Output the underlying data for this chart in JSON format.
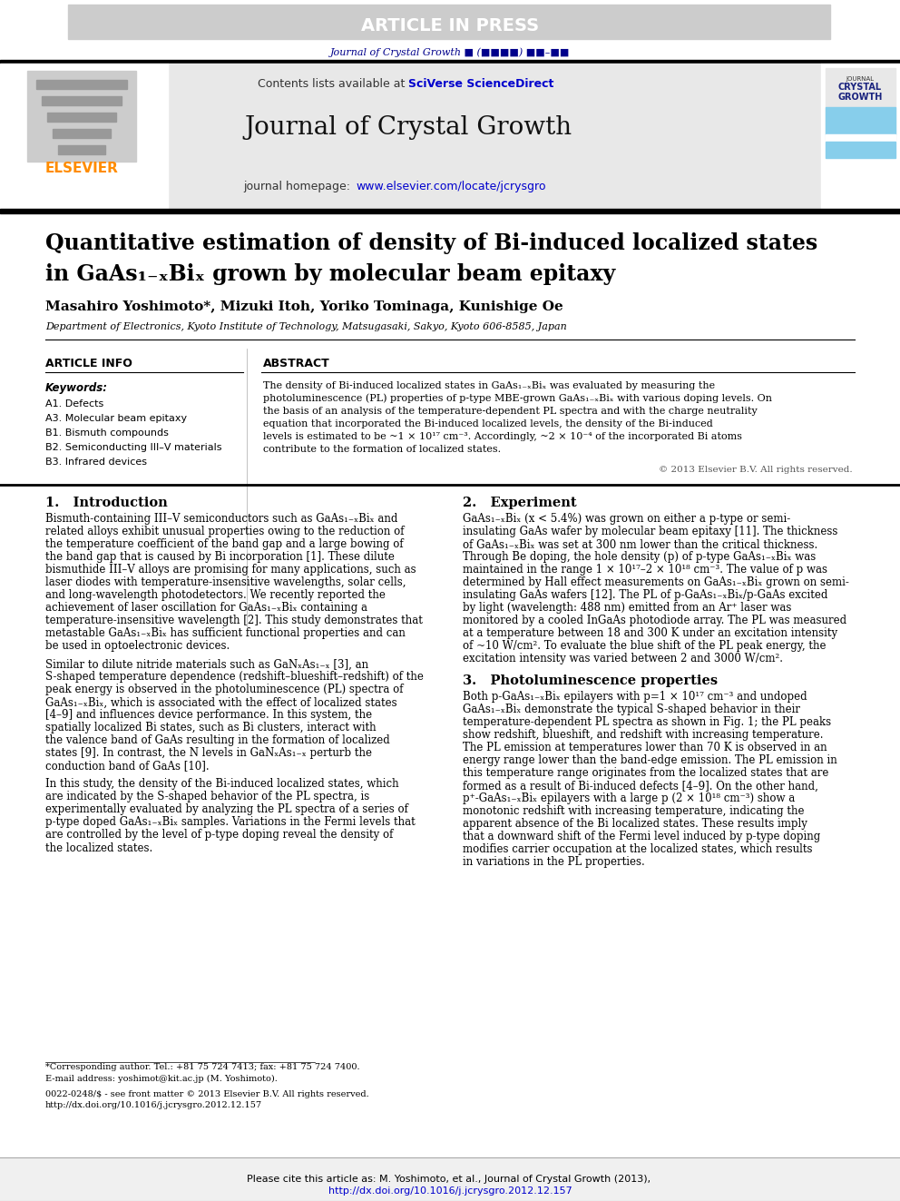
{
  "article_in_press_text": "ARTICLE IN PRESS",
  "article_in_press_bg": "#cccccc",
  "article_in_press_fg": "#ffffff",
  "journal_ref_text": "Journal of Crystal Growth ■ (■■■■) ■■–■■",
  "journal_ref_color": "#00008B",
  "header_bg": "#e8e8e8",
  "contents_text": "Contents lists available at ",
  "sciverse_text": "SciVerse ScienceDirect",
  "sciverse_color": "#0000CD",
  "journal_title": "Journal of Crystal Growth",
  "homepage_text": "journal homepage: ",
  "homepage_url": "www.elsevier.com/locate/jcrysgro",
  "homepage_url_color": "#0000CD",
  "elsevier_color": "#FF8C00",
  "divider_color": "#000000",
  "paper_title_line1": "Quantitative estimation of density of Bi-induced localized states",
  "paper_title_line2": "in GaAs₁₋ₓBiₓ grown by molecular beam epitaxy",
  "authors": "Masahiro Yoshimoto*, Mizuki Itoh, Yoriko Tominaga, Kunishige Oe",
  "affiliation": "Department of Electronics, Kyoto Institute of Technology, Matsugasaki, Sakyo, Kyoto 606-8585, Japan",
  "article_info_title": "ARTICLE INFO",
  "abstract_title": "ABSTRACT",
  "keywords_title": "Keywords:",
  "keywords": [
    "A1. Defects",
    "A3. Molecular beam epitaxy",
    "B1. Bismuth compounds",
    "B2. Semiconducting III–V materials",
    "B3. Infrared devices"
  ],
  "abstract_text": "The density of Bi-induced localized states in GaAs₁₋ₓBiₓ was evaluated by measuring the photoluminescence (PL) properties of p-type MBE-grown GaAs₁₋ₓBiₓ with various doping levels. On the basis of an analysis of the temperature-dependent PL spectra and with the charge neutrality equation that incorporated the Bi-induced localized levels, the density of the Bi-induced levels is estimated to be ~1 × 10¹⁷ cm⁻³. Accordingly, ~2 × 10⁻⁴ of the incorporated Bi atoms contribute to the formation of localized states.",
  "copyright_text": "© 2013 Elsevier B.V. All rights reserved.",
  "section1_title": "1.   Introduction",
  "section1_text": "Bismuth-containing III–V semiconductors such as GaAs₁₋ₓBiₓ and related alloys exhibit unusual properties owing to the reduction of the temperature coefficient of the band gap and a large bowing of the band gap that is caused by Bi incorporation [1]. These dilute bismuthide III–V alloys are promising for many applications, such as laser diodes with temperature-insensitive wavelengths, solar cells, and long-wavelength photodetectors. We recently reported the achievement of laser oscillation for GaAs₁₋ₓBiₓ containing a temperature-insensitive wavelength [2]. This study demonstrates that metastable GaAs₁₋ₓBiₓ has sufficient functional properties and can be used in optoelectronic devices.",
  "section1_text2": "Similar to dilute nitride materials such as GaNₓAs₁₋ₓ [3], an S-shaped temperature dependence (redshift–blueshift–redshift) of the peak energy is observed in the photoluminescence (PL) spectra of GaAs₁₋ₓBiₓ, which is associated with the effect of localized states [4–9] and influences device performance. In this system, the spatially localized Bi states, such as Bi clusters, interact with the valence band of GaAs resulting in the formation of localized states [9]. In contrast, the N levels in GaNₓAs₁₋ₓ perturb the conduction band of GaAs [10].",
  "section1_text3": "In this study, the density of the Bi-induced localized states, which are indicated by the S-shaped behavior of the PL spectra, is experimentally evaluated by analyzing the PL spectra of a series of p-type doped GaAs₁₋ₓBiₓ samples. Variations in the Fermi levels that are controlled by the level of p-type doping reveal the density of the localized states.",
  "section2_title": "2.   Experiment",
  "section2_text": "GaAs₁₋ₓBiₓ (x < 5.4%) was grown on either a p-type or semi-insulating GaAs wafer by molecular beam epitaxy [11]. The thickness of GaAs₁₋ₓBiₓ was set at 300 nm lower than the critical thickness. Through Be doping, the hole density (p) of p-type GaAs₁₋ₓBiₓ was maintained in the range 1 × 10¹⁷–2 × 10¹⁸ cm⁻³. The value of p was determined by Hall effect measurements on GaAs₁₋ₓBiₓ grown on semi-insulating GaAs wafers [12]. The PL of p-GaAs₁₋ₓBiₓ/p-GaAs excited by light (wavelength: 488 nm) emitted from an Ar⁺ laser was monitored by a cooled InGaAs photodiode array. The PL was measured at a temperature between 18 and 300 K under an excitation intensity of ~10 W/cm². To evaluate the blue shift of the PL peak energy, the excitation intensity was varied between 2 and 3000 W/cm².",
  "section3_title": "3.   Photoluminescence properties",
  "section3_text": "Both p-GaAs₁₋ₓBiₓ epilayers with p=1 × 10¹⁷ cm⁻³ and undoped GaAs₁₋ₓBiₓ demonstrate the typical S-shaped behavior in their temperature-dependent PL spectra as shown in Fig. 1; the PL peaks show redshift, blueshift, and redshift with increasing temperature. The PL emission at temperatures lower than 70 K is observed in an energy range lower than the band-edge emission. The PL emission in this temperature range originates from the localized states that are formed as a result of Bi-induced defects [4–9]. On the other hand, p⁺-GaAs₁₋ₓBiₓ epilayers with a large p (2 × 10¹⁸ cm⁻³) show a monotonic redshift with increasing temperature, indicating the apparent absence of the Bi localized states. These results imply that a downward shift of the Fermi level induced by p-type doping modifies carrier occupation at the localized states, which results in variations in the PL properties.",
  "footnote_text": "*Corresponding author. Tel.: +81 75 724 7413; fax: +81 75 724 7400.\nE-mail address: yoshimot@kit.ac.jp (M. Yoshimoto).",
  "issn_text": "0022-0248/$ - see front matter © 2013 Elsevier B.V. All rights reserved.\nhttp://dx.doi.org/10.1016/j.jcrysgro.2012.12.157",
  "cite_text": "Please cite this article as: M. Yoshimoto, et al., Journal of Crystal Growth (2013), http://dx.doi.org/10.1016/j.jcrysgro.2012.12.157",
  "cite_url": "http://dx.doi.org/10.1016/j.jcrysgro.2012.12.157",
  "page_bg": "#ffffff",
  "text_color": "#000000",
  "light_gray": "#d0d0d0",
  "teal_color": "#87CEEB",
  "crystal_growth_dark": "#1a237e"
}
